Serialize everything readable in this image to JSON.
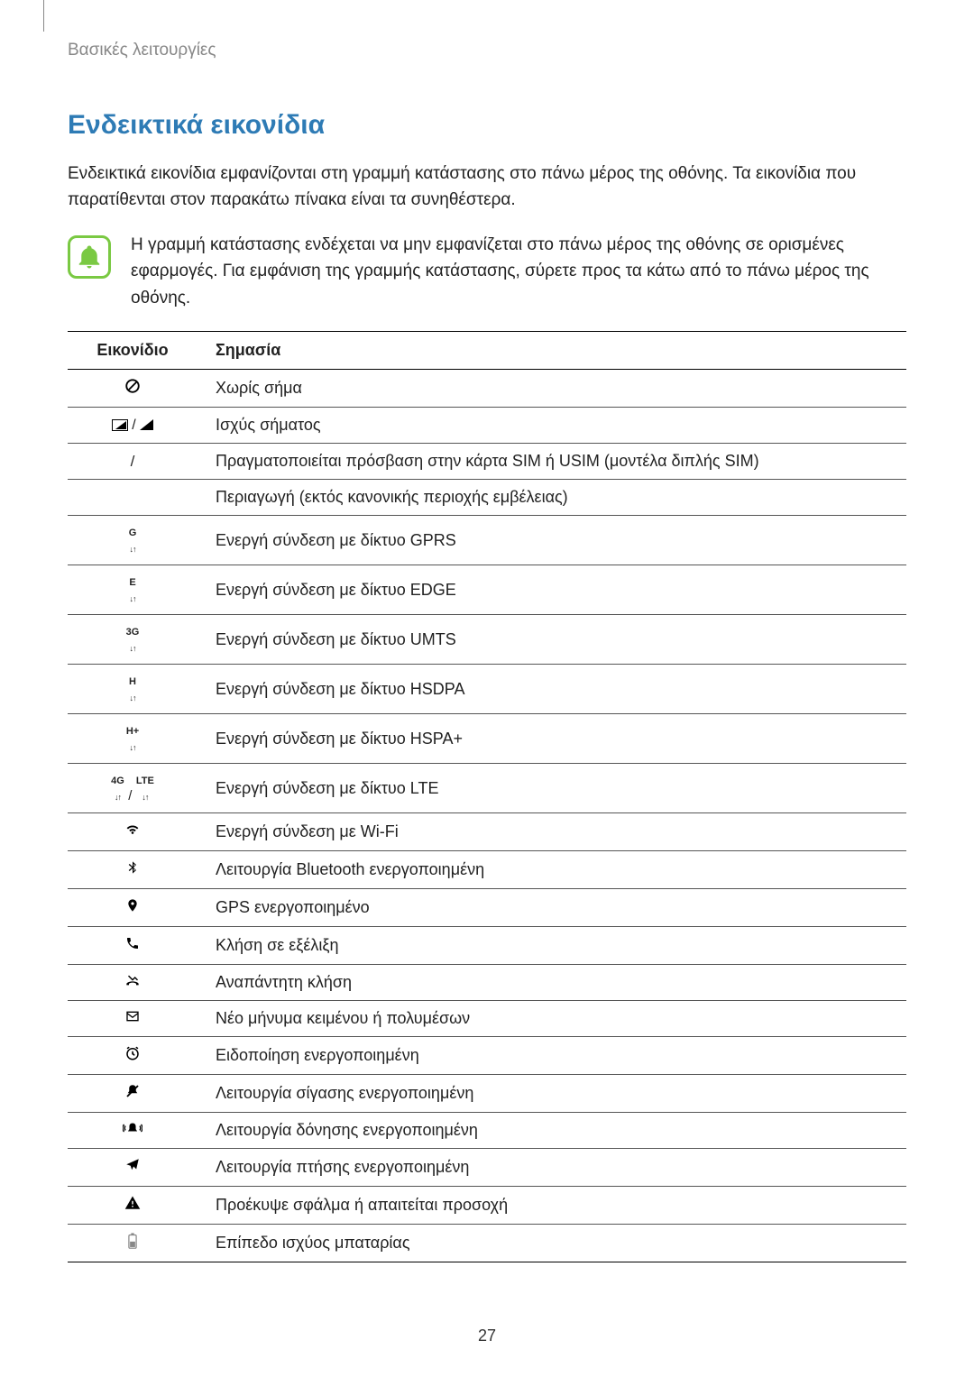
{
  "breadcrumb": "Βασικές λειτουργίες",
  "section_title": "Ενδεικτικά εικονίδια",
  "intro": "Ενδεικτικά εικονίδια εμφανίζονται στη γραμμή κατάστασης στο πάνω μέρος της οθόνης. Τα εικονίδια που παρατίθενται στον παρακάτω πίνακα είναι τα συνηθέστερα.",
  "note": "Η γραμμή κατάστασης ενδέχεται να μην εμφανίζεται στο πάνω μέρος της οθόνης σε ορισμένες εφαρμογές. Για εμφάνιση της γραμμής κατάστασης, σύρετε προς τα κάτω από το πάνω μέρος της οθόνης.",
  "table": {
    "headers": {
      "icon": "Εικονίδιο",
      "meaning": "Σημασία"
    },
    "rows": [
      {
        "icon_type": "no-signal",
        "meaning": "Χωρίς σήμα"
      },
      {
        "icon_type": "signal-strength",
        "meaning": "Ισχύς σήματος"
      },
      {
        "icon_type": "slash-only",
        "meaning": "Πραγματοποιείται πρόσβαση στην κάρτα SIM ή USIM (μοντέλα διπλής SIM)"
      },
      {
        "icon_type": "empty",
        "meaning": "Περιαγωγή (εκτός κανονικής περιοχής εμβέλειας)"
      },
      {
        "icon_type": "gprs",
        "label": "G",
        "meaning": "Ενεργή σύνδεση με δίκτυο GPRS"
      },
      {
        "icon_type": "edge",
        "label": "E",
        "meaning": "Ενεργή σύνδεση με δίκτυο EDGE"
      },
      {
        "icon_type": "umts",
        "label": "3G",
        "meaning": "Ενεργή σύνδεση με δίκτυο UMTS"
      },
      {
        "icon_type": "hsdpa",
        "label": "H",
        "meaning": "Ενεργή σύνδεση με δίκτυο HSDPA"
      },
      {
        "icon_type": "hspa-plus",
        "label": "H+",
        "meaning": "Ενεργή σύνδεση με δίκτυο HSPA+"
      },
      {
        "icon_type": "lte",
        "label1": "4G",
        "label2": "LTE",
        "meaning": "Ενεργή σύνδεση με δίκτυο LTE"
      },
      {
        "icon_type": "wifi",
        "meaning": "Ενεργή σύνδεση με Wi-Fi"
      },
      {
        "icon_type": "bluetooth",
        "meaning": "Λειτουργία Bluetooth ενεργοποιημένη"
      },
      {
        "icon_type": "gps",
        "meaning": "GPS ενεργοποιημένο"
      },
      {
        "icon_type": "call",
        "meaning": "Κλήση σε εξέλιξη"
      },
      {
        "icon_type": "missed-call",
        "meaning": "Αναπάντητη κλήση"
      },
      {
        "icon_type": "message",
        "meaning": "Νέο μήνυμα κειμένου ή πολυμέσων"
      },
      {
        "icon_type": "alarm",
        "meaning": "Ειδοποίηση ενεργοποιημένη"
      },
      {
        "icon_type": "mute",
        "meaning": "Λειτουργία σίγασης ενεργοποιημένη"
      },
      {
        "icon_type": "vibrate",
        "meaning": "Λειτουργία δόνησης ενεργοποιημένη"
      },
      {
        "icon_type": "airplane",
        "meaning": "Λειτουργία πτήσης ενεργοποιημένη"
      },
      {
        "icon_type": "warning",
        "meaning": "Προέκυψε σφάλμα ή απαιτείται προσοχή"
      },
      {
        "icon_type": "battery",
        "meaning": "Επίπεδο ισχύος μπαταρίας"
      }
    ]
  },
  "page_number": "27",
  "colors": {
    "accent": "#2e7bb5",
    "note_border": "#7ac943",
    "note_fill": "#7ac943",
    "text": "#222222",
    "breadcrumb": "#888888"
  }
}
